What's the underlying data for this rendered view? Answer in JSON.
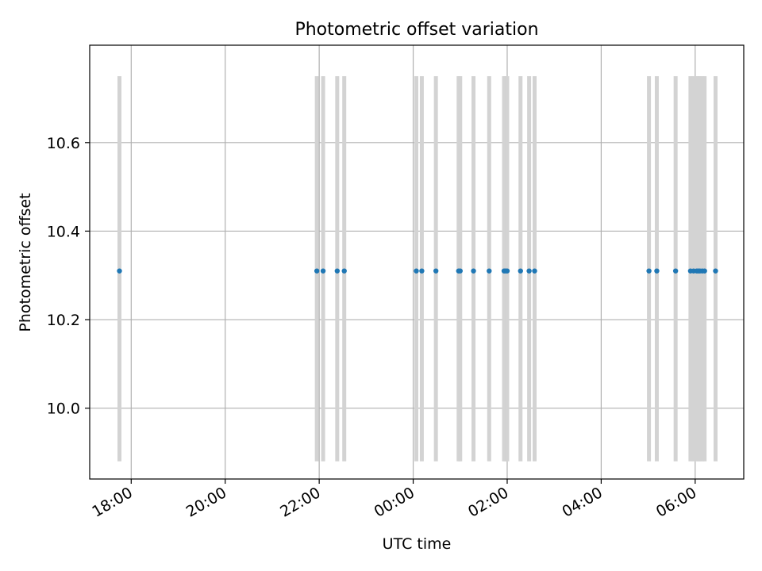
{
  "chart_data": {
    "type": "scatter",
    "title": "Photometric offset variation",
    "xlabel": "UTC time",
    "ylabel": "Photometric offset",
    "x_axis": "time",
    "xlim": [
      "17:07",
      "07:02"
    ],
    "ylim": [
      9.84,
      10.82
    ],
    "x_ticks": [
      "18:00",
      "20:00",
      "22:00",
      "00:00",
      "02:00",
      "04:00",
      "06:00"
    ],
    "y_ticks": [
      10.0,
      10.2,
      10.4,
      10.6
    ],
    "y_tick_labels": [
      "10.0",
      "10.2",
      "10.4",
      "10.6"
    ],
    "grid": true,
    "x_tick_rotation_deg": 30,
    "colors": {
      "points": "#1f77b4",
      "bands": "#d3d3d3",
      "grid": "#b0b0b0"
    },
    "exposure_bands": {
      "y_range": [
        9.88,
        10.75
      ],
      "times": [
        "17:45",
        "21:57",
        "22:05",
        "22:23",
        "22:32",
        "00:04",
        "00:11",
        "00:29",
        "00:58",
        "01:00",
        "01:17",
        "01:37",
        "01:56",
        "01:58",
        "02:00",
        "02:17",
        "02:28",
        "02:35",
        "05:01",
        "05:11",
        "05:35",
        "05:54",
        "05:58",
        "06:02",
        "06:04",
        "06:06",
        "06:09",
        "06:12",
        "06:26"
      ]
    },
    "series": [
      {
        "x": [
          "17:45",
          "21:57",
          "22:05",
          "22:23",
          "22:32",
          "00:04",
          "00:11",
          "00:29",
          "00:58",
          "01:00",
          "01:17",
          "01:37",
          "01:56",
          "01:58",
          "02:00",
          "02:17",
          "02:28",
          "02:35",
          "05:01",
          "05:11",
          "05:35",
          "05:54",
          "05:58",
          "06:02",
          "06:04",
          "06:06",
          "06:09",
          "06:12",
          "06:26"
        ],
        "y": [
          10.31,
          10.31,
          10.31,
          10.31,
          10.31,
          10.31,
          10.31,
          10.31,
          10.31,
          10.31,
          10.31,
          10.31,
          10.31,
          10.31,
          10.31,
          10.31,
          10.31,
          10.31,
          10.31,
          10.31,
          10.31,
          10.31,
          10.31,
          10.31,
          10.31,
          10.31,
          10.31,
          10.31,
          10.31
        ]
      }
    ]
  }
}
